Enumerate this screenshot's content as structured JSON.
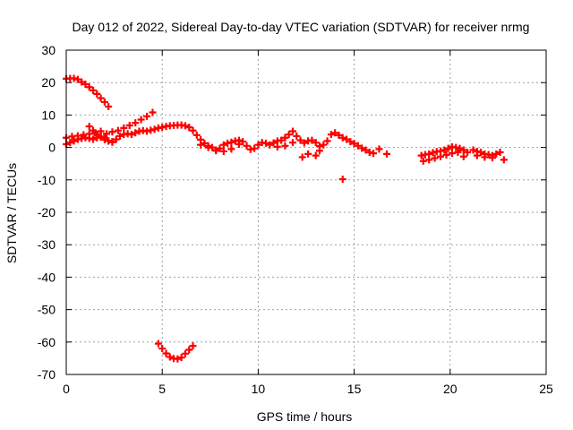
{
  "chart_data": {
    "type": "scatter",
    "title": "Day 012 of 2022, Sidereal Day-to-day VTEC variation (SDTVAR) for receiver nrmg",
    "xlabel": "GPS time / hours",
    "ylabel": "SDTVAR / TECUs",
    "xlim": [
      0,
      25
    ],
    "ylim": [
      -70,
      30
    ],
    "xticks": [
      0,
      5,
      10,
      15,
      20,
      25
    ],
    "yticks": [
      -70,
      -60,
      -50,
      -40,
      -30,
      -20,
      -10,
      0,
      10,
      20,
      30
    ],
    "grid": true,
    "legend": "none",
    "marker_color": "#ff0000",
    "series": [
      {
        "name": "SDTVAR",
        "points": [
          [
            0.0,
            21.2
          ],
          [
            0.2,
            21.3
          ],
          [
            0.4,
            21.3
          ],
          [
            0.6,
            21.0
          ],
          [
            0.8,
            20.2
          ],
          [
            1.0,
            19.5
          ],
          [
            1.2,
            18.6
          ],
          [
            1.4,
            17.6
          ],
          [
            1.6,
            16.5
          ],
          [
            1.8,
            15.2
          ],
          [
            2.0,
            14.0
          ],
          [
            2.2,
            12.6
          ],
          [
            0.0,
            1.0
          ],
          [
            0.2,
            1.5
          ],
          [
            0.4,
            2.0
          ],
          [
            0.6,
            2.5
          ],
          [
            0.8,
            2.8
          ],
          [
            1.0,
            3.0
          ],
          [
            1.2,
            2.8
          ],
          [
            1.4,
            2.5
          ],
          [
            1.6,
            3.0
          ],
          [
            1.8,
            3.4
          ],
          [
            2.0,
            3.0
          ],
          [
            2.2,
            2.0
          ],
          [
            2.4,
            1.8
          ],
          [
            2.6,
            2.5
          ],
          [
            2.8,
            3.5
          ],
          [
            3.0,
            4.0
          ],
          [
            3.2,
            4.2
          ],
          [
            3.4,
            4.0
          ],
          [
            3.6,
            4.5
          ],
          [
            3.8,
            5.0
          ],
          [
            4.0,
            5.2
          ],
          [
            4.2,
            5.0
          ],
          [
            4.4,
            5.3
          ],
          [
            0.0,
            3.0
          ],
          [
            0.3,
            3.4
          ],
          [
            0.6,
            3.6
          ],
          [
            0.9,
            3.9
          ],
          [
            1.2,
            4.2
          ],
          [
            1.5,
            4.5
          ],
          [
            1.8,
            5.0
          ],
          [
            2.1,
            4.2
          ],
          [
            2.4,
            4.8
          ],
          [
            2.7,
            5.2
          ],
          [
            3.0,
            6.0
          ],
          [
            3.3,
            6.8
          ],
          [
            3.6,
            7.6
          ],
          [
            3.9,
            8.6
          ],
          [
            4.2,
            9.6
          ],
          [
            4.5,
            10.8
          ],
          [
            1.2,
            6.5
          ],
          [
            1.4,
            5.2
          ],
          [
            1.6,
            4.0
          ],
          [
            1.8,
            3.2
          ],
          [
            2.0,
            2.4
          ],
          [
            2.2,
            2.0
          ],
          [
            2.4,
            1.6
          ],
          [
            4.6,
            5.6
          ],
          [
            4.8,
            6.0
          ],
          [
            5.0,
            6.2
          ],
          [
            5.2,
            6.5
          ],
          [
            5.4,
            6.7
          ],
          [
            5.6,
            6.8
          ],
          [
            5.8,
            6.9
          ],
          [
            6.0,
            6.9
          ],
          [
            6.2,
            6.7
          ],
          [
            6.4,
            6.2
          ],
          [
            6.6,
            5.2
          ],
          [
            6.8,
            3.8
          ],
          [
            7.0,
            2.4
          ],
          [
            7.2,
            1.3
          ],
          [
            7.4,
            0.5
          ],
          [
            7.6,
            0.0
          ],
          [
            7.8,
            -0.8
          ],
          [
            8.0,
            -0.3
          ],
          [
            8.2,
            0.8
          ],
          [
            8.4,
            1.3
          ],
          [
            8.6,
            1.6
          ],
          [
            8.8,
            2.0
          ],
          [
            9.0,
            2.2
          ],
          [
            9.2,
            1.8
          ],
          [
            9.4,
            0.5
          ],
          [
            9.6,
            -0.6
          ],
          [
            9.8,
            -0.3
          ],
          [
            10.0,
            0.8
          ],
          [
            10.2,
            1.5
          ],
          [
            10.4,
            1.3
          ],
          [
            10.6,
            0.8
          ],
          [
            10.8,
            1.4
          ],
          [
            11.0,
            2.0
          ],
          [
            11.2,
            2.2
          ],
          [
            11.4,
            3.0
          ],
          [
            11.6,
            4.0
          ],
          [
            11.8,
            5.0
          ],
          [
            12.0,
            3.5
          ],
          [
            12.2,
            2.2
          ],
          [
            12.4,
            1.4
          ],
          [
            12.6,
            2.0
          ],
          [
            12.8,
            2.2
          ],
          [
            13.0,
            1.5
          ],
          [
            13.2,
            0.4
          ],
          [
            13.4,
            0.8
          ],
          [
            13.6,
            2.0
          ],
          [
            13.8,
            4.0
          ],
          [
            14.0,
            4.5
          ],
          [
            14.2,
            3.8
          ],
          [
            14.4,
            3.0
          ],
          [
            14.6,
            2.5
          ],
          [
            14.8,
            1.8
          ],
          [
            15.0,
            1.2
          ],
          [
            15.2,
            0.5
          ],
          [
            15.4,
            -0.2
          ],
          [
            15.6,
            -0.8
          ],
          [
            15.8,
            -1.5
          ],
          [
            16.0,
            -1.8
          ],
          [
            16.3,
            -0.5
          ],
          [
            16.7,
            -2.0
          ],
          [
            7.0,
            0.8
          ],
          [
            7.4,
            0.0
          ],
          [
            7.8,
            -1.0
          ],
          [
            8.2,
            -1.2
          ],
          [
            8.6,
            -0.5
          ],
          [
            9.0,
            1.0
          ],
          [
            11.0,
            0.2
          ],
          [
            11.4,
            0.5
          ],
          [
            11.8,
            1.5
          ],
          [
            12.3,
            -3.0
          ],
          [
            12.6,
            -2.0
          ],
          [
            13.0,
            -2.5
          ],
          [
            13.2,
            -1.0
          ],
          [
            14.4,
            -9.8
          ],
          [
            18.5,
            -2.5
          ],
          [
            18.7,
            -2.2
          ],
          [
            18.9,
            -2.0
          ],
          [
            19.1,
            -1.6
          ],
          [
            19.3,
            -1.3
          ],
          [
            19.5,
            -1.1
          ],
          [
            19.7,
            -0.8
          ],
          [
            19.9,
            -0.3
          ],
          [
            20.1,
            0.2
          ],
          [
            20.3,
            0.0
          ],
          [
            20.5,
            -0.3
          ],
          [
            20.7,
            -0.8
          ],
          [
            20.9,
            -1.5
          ],
          [
            18.6,
            -4.2
          ],
          [
            18.9,
            -3.8
          ],
          [
            19.2,
            -3.3
          ],
          [
            19.5,
            -2.8
          ],
          [
            19.8,
            -2.3
          ],
          [
            20.1,
            -1.8
          ],
          [
            20.4,
            -1.5
          ],
          [
            20.7,
            -2.8
          ],
          [
            21.2,
            -0.8
          ],
          [
            21.4,
            -1.2
          ],
          [
            21.6,
            -1.5
          ],
          [
            21.8,
            -2.0
          ],
          [
            22.0,
            -2.2
          ],
          [
            22.2,
            -2.5
          ],
          [
            22.4,
            -2.0
          ],
          [
            22.6,
            -1.5
          ],
          [
            22.8,
            -3.8
          ],
          [
            21.4,
            -2.5
          ],
          [
            21.8,
            -3.0
          ],
          [
            22.2,
            -3.2
          ],
          [
            4.8,
            -60.5
          ],
          [
            5.0,
            -62.0
          ],
          [
            5.2,
            -63.5
          ],
          [
            5.4,
            -64.6
          ],
          [
            5.6,
            -65.1
          ],
          [
            5.8,
            -65.2
          ],
          [
            6.0,
            -64.8
          ],
          [
            6.2,
            -63.6
          ],
          [
            6.4,
            -62.4
          ],
          [
            6.6,
            -61.2
          ]
        ]
      }
    ]
  }
}
